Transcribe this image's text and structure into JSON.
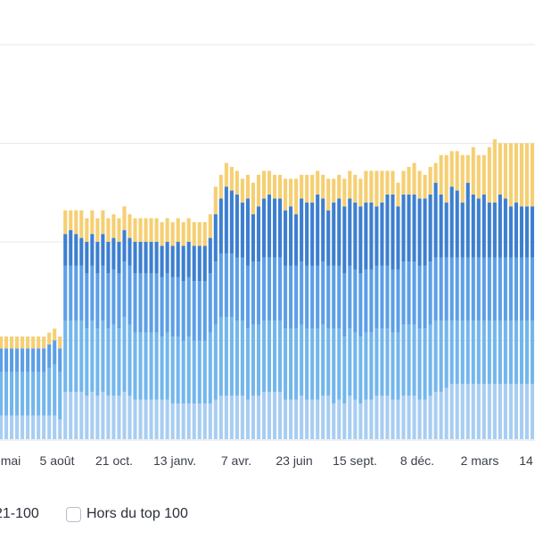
{
  "chart_data": {
    "type": "bar",
    "stacked": true,
    "grid": true,
    "x_tick_labels": [
      "mai",
      "5 août",
      "21 oct.",
      "13 janv.",
      "7 avr.",
      "23 juin",
      "15 sept.",
      "8 déc.",
      "2 mars",
      "14"
    ],
    "ylim": [
      0,
      100
    ],
    "y_gridlines": [
      25,
      50,
      75,
      100
    ],
    "colors": {
      "pos_1_3": "#a8cdf2",
      "pos_4_10": "#73b6ec",
      "pos_11_20": "#5c9fe6",
      "pos_21_100": "#3d7fd0",
      "hors_top_100": "#f5cf72"
    },
    "series": [
      {
        "key": "pos_1_3",
        "values": [
          6,
          6,
          6,
          6,
          6,
          6,
          6,
          6,
          6,
          6,
          6,
          5,
          12,
          12,
          12,
          12,
          11,
          12,
          11,
          12,
          11,
          11,
          11,
          12,
          11,
          10,
          10,
          10,
          10,
          10,
          10,
          10,
          9,
          9,
          9,
          9,
          9,
          9,
          9,
          9,
          10,
          11,
          11,
          11,
          11,
          11,
          10,
          11,
          11,
          12,
          12,
          12,
          12,
          10,
          10,
          10,
          11,
          10,
          10,
          10,
          11,
          11,
          9,
          10,
          9,
          11,
          10,
          9,
          10,
          10,
          11,
          11,
          11,
          10,
          10,
          11,
          11,
          11,
          10,
          10,
          11,
          12,
          12,
          13,
          14,
          14,
          14,
          14,
          14,
          14,
          14,
          14,
          14,
          14,
          14,
          14,
          14,
          14,
          14,
          14
        ]
      },
      {
        "key": "pos_4_10",
        "values": [
          11,
          11,
          11,
          11,
          11,
          11,
          11,
          11,
          11,
          12,
          13,
          12,
          18,
          18,
          18,
          18,
          17,
          18,
          17,
          18,
          17,
          18,
          17,
          19,
          18,
          17,
          17,
          17,
          17,
          17,
          16,
          17,
          17,
          17,
          16,
          17,
          16,
          16,
          16,
          18,
          19,
          20,
          20,
          20,
          19,
          19,
          18,
          18,
          18,
          18,
          18,
          18,
          18,
          18,
          18,
          18,
          18,
          18,
          18,
          18,
          18,
          17,
          19,
          18,
          17,
          17,
          17,
          17,
          17,
          17,
          17,
          17,
          17,
          17,
          17,
          18,
          18,
          18,
          18,
          18,
          18,
          18,
          18,
          17,
          16,
          16,
          16,
          16,
          16,
          16,
          16,
          16,
          16,
          16,
          16,
          16,
          16,
          16,
          16,
          16
        ]
      },
      {
        "key": "pos_11_20",
        "values": [
          6,
          6,
          6,
          6,
          6,
          6,
          6,
          6,
          6,
          6,
          6,
          6,
          14,
          14,
          14,
          14,
          14,
          14,
          14,
          14,
          14,
          14,
          14,
          14,
          15,
          15,
          15,
          15,
          15,
          15,
          15,
          15,
          15,
          15,
          15,
          15,
          15,
          15,
          15,
          15,
          16,
          16,
          16,
          16,
          16,
          16,
          16,
          16,
          16,
          16,
          16,
          16,
          16,
          16,
          16,
          16,
          16,
          16,
          16,
          16,
          16,
          16,
          16,
          16,
          16,
          16,
          16,
          16,
          16,
          16,
          16,
          16,
          16,
          16,
          16,
          16,
          16,
          16,
          16,
          16,
          16,
          16,
          16,
          16,
          16,
          16,
          16,
          16,
          16,
          16,
          16,
          16,
          16,
          16,
          16,
          16,
          16,
          16,
          16,
          16
        ]
      },
      {
        "key": "pos_21_100",
        "values": [
          0,
          0,
          0,
          0,
          0,
          0,
          0,
          0,
          0,
          0,
          0,
          0,
          8,
          9,
          8,
          7,
          8,
          8,
          8,
          8,
          8,
          8,
          8,
          8,
          7,
          8,
          8,
          8,
          8,
          8,
          8,
          8,
          8,
          9,
          9,
          9,
          9,
          9,
          9,
          9,
          12,
          14,
          17,
          16,
          16,
          14,
          17,
          12,
          14,
          15,
          16,
          15,
          15,
          14,
          15,
          13,
          16,
          16,
          16,
          18,
          16,
          14,
          16,
          17,
          17,
          17,
          17,
          17,
          17,
          17,
          15,
          16,
          18,
          19,
          16,
          17,
          17,
          17,
          17,
          17,
          17,
          19,
          16,
          14,
          18,
          17,
          14,
          19,
          16,
          15,
          16,
          14,
          14,
          16,
          15,
          13,
          14,
          13,
          13,
          13
        ]
      },
      {
        "key": "hors_top_100",
        "values": [
          3,
          3,
          3,
          3,
          3,
          3,
          3,
          3,
          3,
          3,
          3,
          3,
          6,
          5,
          6,
          7,
          6,
          6,
          6,
          6,
          6,
          6,
          6,
          6,
          6,
          6,
          6,
          6,
          6,
          6,
          6,
          6,
          6,
          6,
          6,
          6,
          6,
          6,
          6,
          6,
          7,
          6,
          6,
          6,
          6,
          6,
          6,
          8,
          8,
          7,
          6,
          6,
          6,
          8,
          7,
          9,
          6,
          7,
          7,
          6,
          6,
          8,
          6,
          6,
          7,
          7,
          7,
          7,
          8,
          8,
          9,
          8,
          6,
          6,
          6,
          6,
          7,
          8,
          7,
          6,
          7,
          5,
          10,
          12,
          9,
          10,
          12,
          7,
          12,
          11,
          10,
          14,
          16,
          13,
          14,
          16,
          15,
          16,
          16,
          16
        ]
      }
    ]
  },
  "legend": {
    "items": [
      {
        "label": "21-100",
        "color": "#3d7fd0"
      },
      {
        "label": "Hors du top 100",
        "color": "#ffffff"
      }
    ]
  }
}
